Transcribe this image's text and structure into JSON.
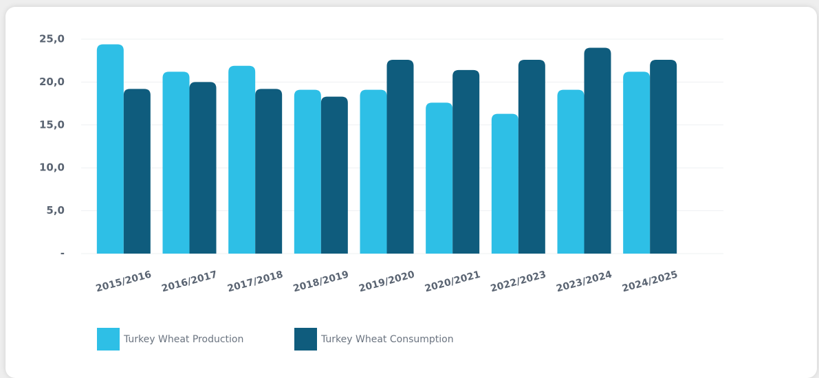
{
  "chart_data": {
    "type": "bar",
    "categories": [
      "2015/2016",
      "2016/2017",
      "2017/2018",
      "2018/2019",
      "2019/2020",
      "2020/2021",
      "2022/2023",
      "2023/2024",
      "2024/2025"
    ],
    "series": [
      {
        "name": "Turkey Wheat Production",
        "color": "#2ebfe6",
        "values": [
          24.4,
          21.2,
          21.9,
          19.1,
          19.1,
          17.6,
          16.3,
          19.1,
          21.2
        ]
      },
      {
        "name": "Turkey Wheat Consumption",
        "color": "#0f5c7d",
        "values": [
          19.2,
          20.0,
          19.2,
          18.3,
          22.6,
          21.4,
          22.6,
          24.0,
          22.6
        ]
      }
    ],
    "ylim": [
      0,
      25
    ],
    "yticks": [
      {
        "value": 0,
        "label": "-"
      },
      {
        "value": 5,
        "label": "5,0"
      },
      {
        "value": 10,
        "label": "10,0"
      },
      {
        "value": 15,
        "label": "15,0"
      },
      {
        "value": 20,
        "label": "20,0"
      },
      {
        "value": 25,
        "label": "25,0"
      }
    ],
    "grid": true,
    "legend": "bottom"
  }
}
